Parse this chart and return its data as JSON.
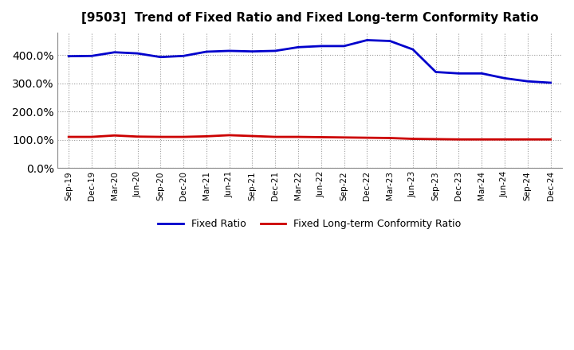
{
  "title": "[9503]  Trend of Fixed Ratio and Fixed Long-term Conformity Ratio",
  "x_labels": [
    "Sep-19",
    "Dec-19",
    "Mar-20",
    "Jun-20",
    "Sep-20",
    "Dec-20",
    "Mar-21",
    "Jun-21",
    "Sep-21",
    "Dec-21",
    "Mar-22",
    "Jun-22",
    "Sep-22",
    "Dec-22",
    "Mar-23",
    "Jun-23",
    "Sep-23",
    "Dec-23",
    "Mar-24",
    "Jun-24",
    "Sep-24",
    "Dec-24"
  ],
  "fixed_ratio": [
    396,
    397,
    410,
    406,
    393,
    397,
    412,
    415,
    413,
    415,
    428,
    432,
    432,
    453,
    450,
    420,
    340,
    335,
    335,
    318,
    307,
    302
  ],
  "fixed_longterm": [
    110,
    110,
    115,
    111,
    110,
    110,
    112,
    116,
    113,
    110,
    110,
    109,
    108,
    107,
    106,
    103,
    102,
    101,
    101,
    101,
    101,
    101
  ],
  "fixed_ratio_color": "#0000CC",
  "fixed_longterm_color": "#CC0000",
  "ylim": [
    0,
    480
  ],
  "yticks": [
    0,
    100,
    200,
    300,
    400
  ],
  "background_color": "#ffffff",
  "grid_color": "#999999",
  "legend_fixed_ratio": "Fixed Ratio",
  "legend_fixed_longterm": "Fixed Long-term Conformity Ratio"
}
